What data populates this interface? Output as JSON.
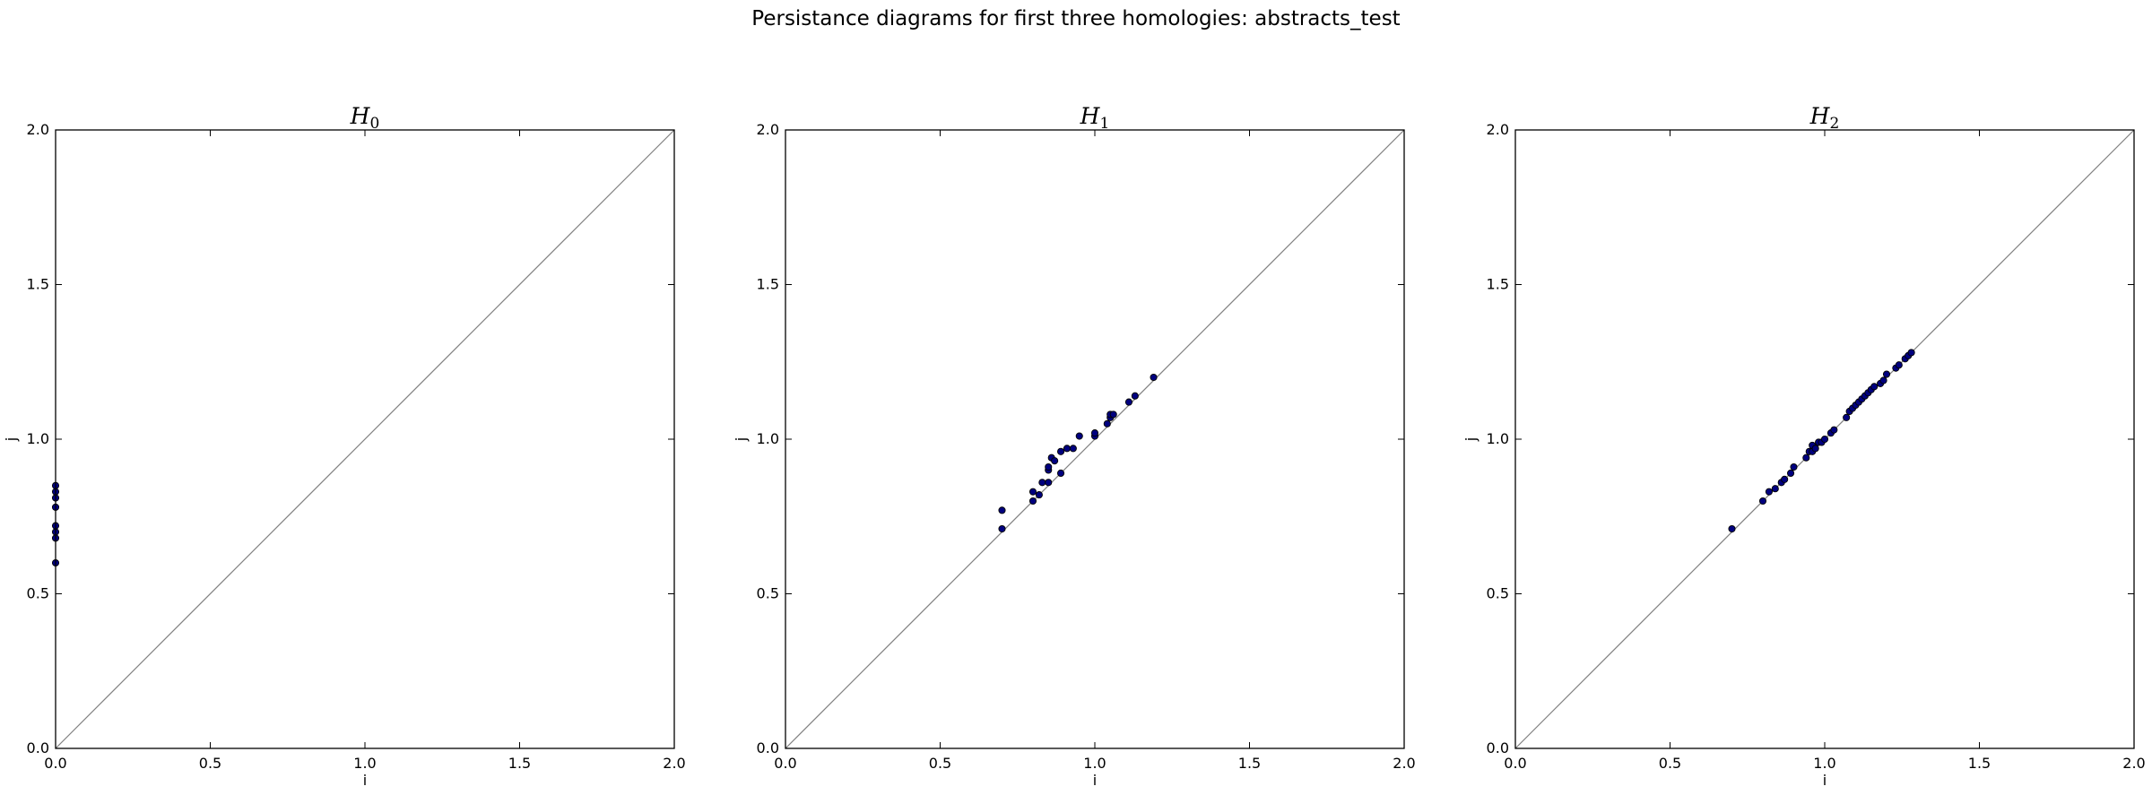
{
  "suptitle": "Persistance diagrams for first three homologies: abstracts_test",
  "style": {
    "point_fill": "#00007f",
    "diagonal_color": "#808080",
    "frame_color": "#000000"
  },
  "chart_data": [
    {
      "type": "scatter",
      "title": "H",
      "title_subscript": "0",
      "xlabel": "i",
      "ylabel": "j",
      "xlim": [
        0,
        2
      ],
      "ylim": [
        0,
        2
      ],
      "xticks": [
        "0.0",
        "0.5",
        "1.0",
        "1.5",
        "2.0"
      ],
      "yticks": [
        "0.0",
        "0.5",
        "1.0",
        "1.5",
        "2.0"
      ],
      "grid": false,
      "diagonal": true,
      "points": [
        {
          "x": 0.0,
          "y": 0.6
        },
        {
          "x": 0.0,
          "y": 0.68
        },
        {
          "x": 0.0,
          "y": 0.7
        },
        {
          "x": 0.0,
          "y": 0.72
        },
        {
          "x": 0.0,
          "y": 0.78
        },
        {
          "x": 0.0,
          "y": 0.81
        },
        {
          "x": 0.0,
          "y": 0.83
        },
        {
          "x": 0.0,
          "y": 0.85
        }
      ]
    },
    {
      "type": "scatter",
      "title": "H",
      "title_subscript": "1",
      "xlabel": "i",
      "ylabel": "j",
      "xlim": [
        0,
        2
      ],
      "ylim": [
        0,
        2
      ],
      "xticks": [
        "0.0",
        "0.5",
        "1.0",
        "1.5",
        "2.0"
      ],
      "yticks": [
        "0.0",
        "0.5",
        "1.0",
        "1.5",
        "2.0"
      ],
      "grid": false,
      "diagonal": true,
      "points": [
        {
          "x": 0.7,
          "y": 0.77
        },
        {
          "x": 0.7,
          "y": 0.71
        },
        {
          "x": 0.8,
          "y": 0.8
        },
        {
          "x": 0.8,
          "y": 0.83
        },
        {
          "x": 0.82,
          "y": 0.82
        },
        {
          "x": 0.83,
          "y": 0.86
        },
        {
          "x": 0.85,
          "y": 0.86
        },
        {
          "x": 0.85,
          "y": 0.9
        },
        {
          "x": 0.85,
          "y": 0.91
        },
        {
          "x": 0.86,
          "y": 0.94
        },
        {
          "x": 0.87,
          "y": 0.93
        },
        {
          "x": 0.89,
          "y": 0.89
        },
        {
          "x": 0.89,
          "y": 0.96
        },
        {
          "x": 0.91,
          "y": 0.97
        },
        {
          "x": 0.93,
          "y": 0.97
        },
        {
          "x": 0.95,
          "y": 1.01
        },
        {
          "x": 1.0,
          "y": 1.01
        },
        {
          "x": 1.0,
          "y": 1.02
        },
        {
          "x": 1.04,
          "y": 1.05
        },
        {
          "x": 1.05,
          "y": 1.07
        },
        {
          "x": 1.05,
          "y": 1.08
        },
        {
          "x": 1.06,
          "y": 1.08
        },
        {
          "x": 1.11,
          "y": 1.12
        },
        {
          "x": 1.13,
          "y": 1.14
        },
        {
          "x": 1.19,
          "y": 1.2
        }
      ]
    },
    {
      "type": "scatter",
      "title": "H",
      "title_subscript": "2",
      "xlabel": "i",
      "ylabel": "j",
      "xlim": [
        0,
        2
      ],
      "ylim": [
        0,
        2
      ],
      "xticks": [
        "0.0",
        "0.5",
        "1.0",
        "1.5",
        "2.0"
      ],
      "yticks": [
        "0.0",
        "0.5",
        "1.0",
        "1.5",
        "2.0"
      ],
      "grid": false,
      "diagonal": true,
      "points": [
        {
          "x": 0.7,
          "y": 0.71
        },
        {
          "x": 0.8,
          "y": 0.8
        },
        {
          "x": 0.82,
          "y": 0.83
        },
        {
          "x": 0.84,
          "y": 0.84
        },
        {
          "x": 0.86,
          "y": 0.86
        },
        {
          "x": 0.87,
          "y": 0.87
        },
        {
          "x": 0.89,
          "y": 0.89
        },
        {
          "x": 0.9,
          "y": 0.91
        },
        {
          "x": 0.94,
          "y": 0.94
        },
        {
          "x": 0.95,
          "y": 0.96
        },
        {
          "x": 0.96,
          "y": 0.96
        },
        {
          "x": 0.96,
          "y": 0.98
        },
        {
          "x": 0.97,
          "y": 0.97
        },
        {
          "x": 0.98,
          "y": 0.99
        },
        {
          "x": 0.99,
          "y": 0.99
        },
        {
          "x": 1.0,
          "y": 1.0
        },
        {
          "x": 1.02,
          "y": 1.02
        },
        {
          "x": 1.03,
          "y": 1.03
        },
        {
          "x": 1.07,
          "y": 1.07
        },
        {
          "x": 1.08,
          "y": 1.09
        },
        {
          "x": 1.09,
          "y": 1.1
        },
        {
          "x": 1.1,
          "y": 1.11
        },
        {
          "x": 1.11,
          "y": 1.12
        },
        {
          "x": 1.12,
          "y": 1.13
        },
        {
          "x": 1.13,
          "y": 1.14
        },
        {
          "x": 1.14,
          "y": 1.15
        },
        {
          "x": 1.15,
          "y": 1.16
        },
        {
          "x": 1.16,
          "y": 1.17
        },
        {
          "x": 1.18,
          "y": 1.18
        },
        {
          "x": 1.19,
          "y": 1.19
        },
        {
          "x": 1.2,
          "y": 1.21
        },
        {
          "x": 1.23,
          "y": 1.23
        },
        {
          "x": 1.24,
          "y": 1.24
        },
        {
          "x": 1.26,
          "y": 1.26
        },
        {
          "x": 1.27,
          "y": 1.27
        },
        {
          "x": 1.28,
          "y": 1.28
        }
      ]
    }
  ]
}
